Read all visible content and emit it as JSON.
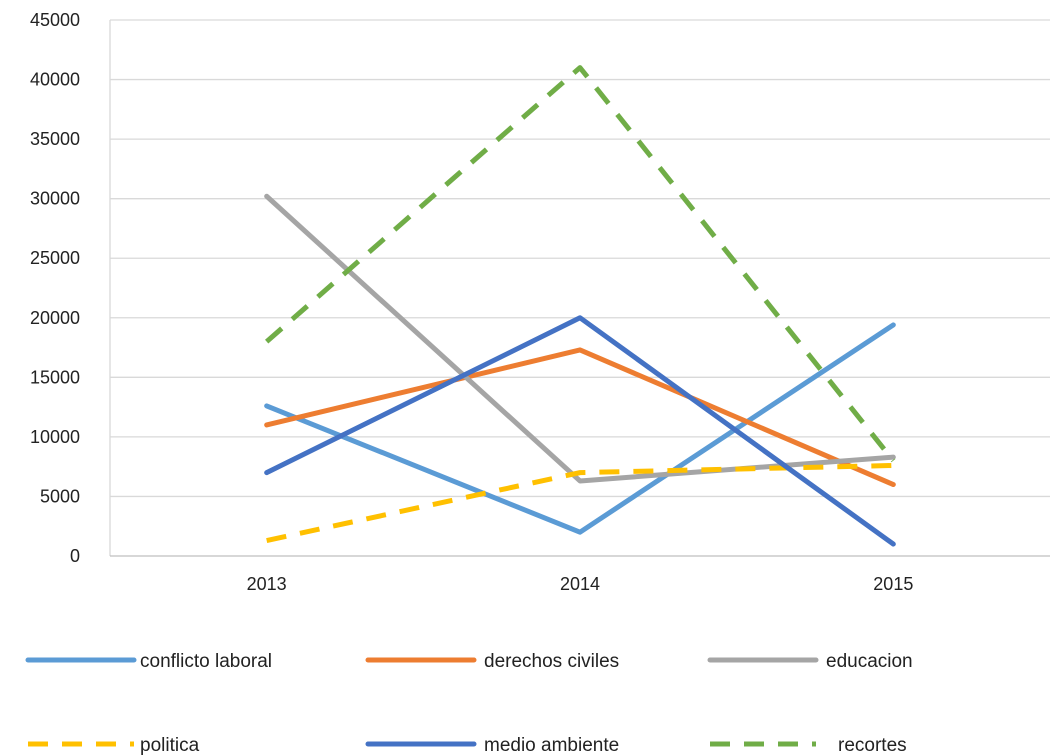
{
  "chart_data": {
    "type": "line",
    "title": "",
    "xlabel": "",
    "ylabel": "",
    "categories": [
      "2013",
      "2014",
      "2015"
    ],
    "ylim": [
      0,
      45000
    ],
    "yticks": [
      0,
      5000,
      10000,
      15000,
      20000,
      25000,
      30000,
      35000,
      40000,
      45000
    ],
    "grid": "horizontal",
    "legend_position": "bottom",
    "series": [
      {
        "name": "conflicto laboral",
        "values": [
          12600,
          2000,
          19400
        ],
        "color": "#5b9bd5",
        "dash": "solid"
      },
      {
        "name": "derechos civiles",
        "values": [
          11000,
          17300,
          6000
        ],
        "color": "#ed7d31",
        "dash": "solid"
      },
      {
        "name": "educacion",
        "values": [
          30200,
          6300,
          8300
        ],
        "color": "#a5a5a5",
        "dash": "solid"
      },
      {
        "name": "politica",
        "values": [
          1300,
          7000,
          7600
        ],
        "color": "#ffc000",
        "dash": "dashed"
      },
      {
        "name": "medio ambiente",
        "values": [
          7000,
          20000,
          1000
        ],
        "color": "#4472c4",
        "dash": "solid"
      },
      {
        "name": "recortes",
        "values": [
          18000,
          41000,
          8000
        ],
        "color": "#70ad47",
        "dash": "dashed"
      }
    ]
  }
}
